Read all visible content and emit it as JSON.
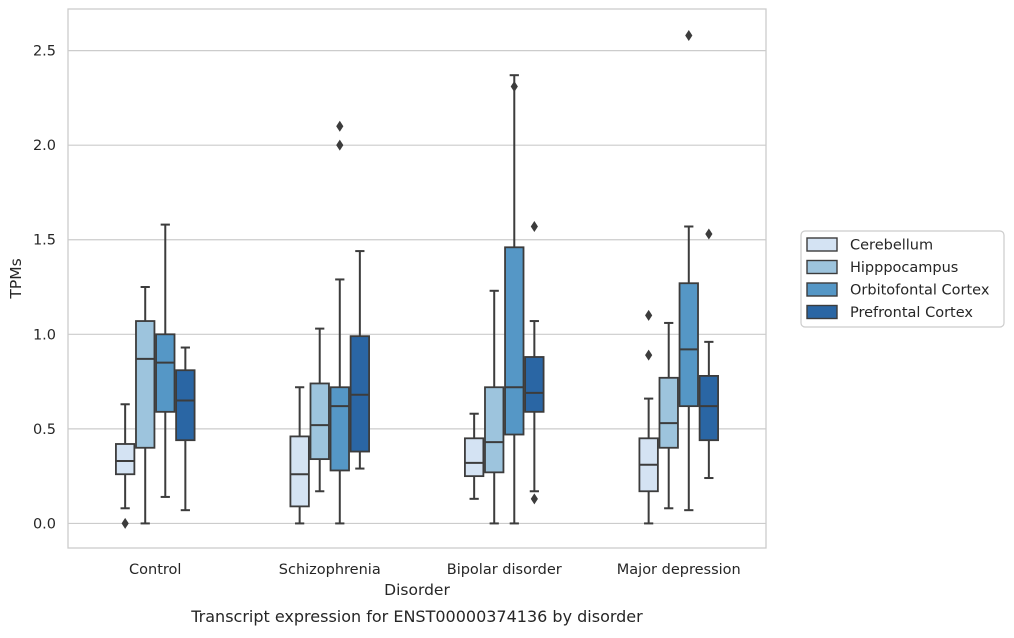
{
  "chart_data": {
    "type": "box",
    "title": "",
    "caption": "Transcript expression for ENST00000374136 by disorder",
    "xlabel": "Disorder",
    "ylabel": "TPMs",
    "ylim": [
      -0.13,
      2.72
    ],
    "yticks": [
      0.0,
      0.5,
      1.0,
      1.5,
      2.0,
      2.5
    ],
    "ytick_labels": [
      "0.0",
      "0.5",
      "1.0",
      "1.5",
      "2.0",
      "2.5"
    ],
    "grid": "horizontal",
    "legend_position": "right",
    "categories": [
      "Control",
      "Schizophrenia",
      "Bipolar disorder",
      "Major depression"
    ],
    "series": [
      {
        "name": "Cerebellum",
        "color": "#d4e3f3",
        "boxes": [
          {
            "whisker_low": 0.08,
            "q1": 0.26,
            "median": 0.33,
            "q3": 0.42,
            "whisker_high": 0.63,
            "outliers": [
              0.0
            ]
          },
          {
            "whisker_low": 0.0,
            "q1": 0.09,
            "median": 0.26,
            "q3": 0.46,
            "whisker_high": 0.72,
            "outliers": []
          },
          {
            "whisker_low": 0.13,
            "q1": 0.25,
            "median": 0.32,
            "q3": 0.45,
            "whisker_high": 0.58,
            "outliers": []
          },
          {
            "whisker_low": 0.0,
            "q1": 0.17,
            "median": 0.31,
            "q3": 0.45,
            "whisker_high": 0.66,
            "outliers": [
              0.89,
              1.1
            ]
          }
        ]
      },
      {
        "name": "Hipppocampus",
        "color": "#9dc4dd",
        "boxes": [
          {
            "whisker_low": 0.0,
            "q1": 0.4,
            "median": 0.87,
            "q3": 1.07,
            "whisker_high": 1.25,
            "outliers": []
          },
          {
            "whisker_low": 0.17,
            "q1": 0.34,
            "median": 0.52,
            "q3": 0.74,
            "whisker_high": 1.03,
            "outliers": []
          },
          {
            "whisker_low": 0.0,
            "q1": 0.27,
            "median": 0.43,
            "q3": 0.72,
            "whisker_high": 1.23,
            "outliers": []
          },
          {
            "whisker_low": 0.08,
            "q1": 0.4,
            "median": 0.53,
            "q3": 0.77,
            "whisker_high": 1.06,
            "outliers": []
          }
        ]
      },
      {
        "name": "Orbitofontal Cortex",
        "color": "#5597c6",
        "boxes": [
          {
            "whisker_low": 0.14,
            "q1": 0.59,
            "median": 0.85,
            "q3": 1.0,
            "whisker_high": 1.58,
            "outliers": []
          },
          {
            "whisker_low": 0.0,
            "q1": 0.28,
            "median": 0.62,
            "q3": 0.72,
            "whisker_high": 1.29,
            "outliers": [
              2.0,
              2.1
            ]
          },
          {
            "whisker_low": 0.0,
            "q1": 0.47,
            "median": 0.72,
            "q3": 1.46,
            "whisker_high": 2.37,
            "outliers": [
              2.31
            ]
          },
          {
            "whisker_low": 0.07,
            "q1": 0.62,
            "median": 0.92,
            "q3": 1.27,
            "whisker_high": 1.57,
            "outliers": [
              2.58
            ]
          }
        ]
      },
      {
        "name": "Prefrontal Cortex",
        "color": "#2a66a4",
        "boxes": [
          {
            "whisker_low": 0.07,
            "q1": 0.44,
            "median": 0.65,
            "q3": 0.81,
            "whisker_high": 0.93,
            "outliers": []
          },
          {
            "whisker_low": 0.29,
            "q1": 0.38,
            "median": 0.68,
            "q3": 0.99,
            "whisker_high": 1.44,
            "outliers": []
          },
          {
            "whisker_low": 0.17,
            "q1": 0.59,
            "median": 0.69,
            "q3": 0.88,
            "whisker_high": 1.07,
            "outliers": [
              1.57,
              0.13
            ]
          },
          {
            "whisker_low": 0.24,
            "q1": 0.44,
            "median": 0.62,
            "q3": 0.78,
            "whisker_high": 0.96,
            "outliers": [
              1.53
            ]
          }
        ]
      }
    ],
    "colors": {
      "edge": "#3c3c3c",
      "grid": "#cccccc",
      "frame": "#cccccc"
    }
  }
}
